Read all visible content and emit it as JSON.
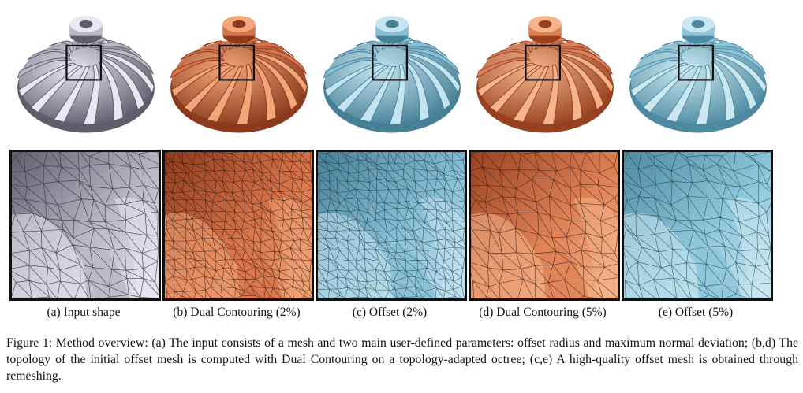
{
  "panels": [
    {
      "caption": "(a) Input shape",
      "colors": {
        "base": "#b9b9c6",
        "light": "#e8e8f2",
        "dark": "#5d5d6c",
        "line": "#2f2f3a"
      }
    },
    {
      "caption": "(b) Dual Contouring (2%)",
      "colors": {
        "base": "#d8744a",
        "light": "#f2a679",
        "dark": "#8c3a1d",
        "line": "#2b140c"
      }
    },
    {
      "caption": "(c) Offset (2%)",
      "colors": {
        "base": "#86bfd6",
        "light": "#c4e4ef",
        "dark": "#467f96",
        "line": "#1d3440"
      }
    },
    {
      "caption": "(d) Dual Contouring (5%)",
      "colors": {
        "base": "#df8156",
        "light": "#f5b48b",
        "dark": "#984121",
        "line": "#2b140c"
      }
    },
    {
      "caption": "(e) Offset (5%)",
      "colors": {
        "base": "#8cc6da",
        "light": "#cbe8f1",
        "dark": "#4d8aa1",
        "line": "#1d3440"
      }
    }
  ],
  "figure_caption": "Figure 1: Method overview: (a) The input consists of a mesh and two main user-defined parameters: offset radius and maximum normal deviation; (b,d) The topology of the initial offset mesh is computed with Dual Contouring on a topology-adapted octree; (c,e) A high-quality offset mesh is obtained through remeshing."
}
